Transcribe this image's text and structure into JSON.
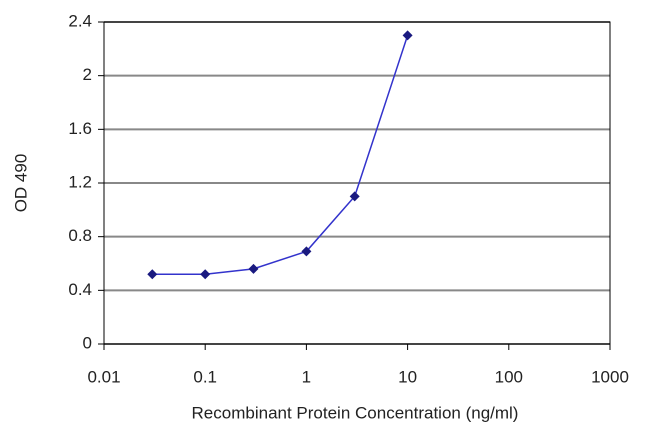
{
  "chart_data": {
    "type": "line",
    "x_label": "Recombinant Protein Concentration (ng/ml)",
    "y_label": "OD 490",
    "x": [
      0.03,
      0.1,
      0.3,
      1,
      3,
      10
    ],
    "values": [
      0.52,
      0.52,
      0.56,
      0.69,
      1.1,
      2.3
    ],
    "color": "#3333cc",
    "marker_color": "#1a1a80",
    "xscale": "log",
    "xlim": [
      0.01,
      1000
    ],
    "xticks": [
      0.01,
      0.1,
      1,
      10,
      100,
      1000
    ],
    "ylim": [
      0,
      2.4
    ],
    "yticks": [
      0,
      0.4,
      0.8,
      1.2,
      1.6,
      2,
      2.4
    ],
    "grid": true
  }
}
